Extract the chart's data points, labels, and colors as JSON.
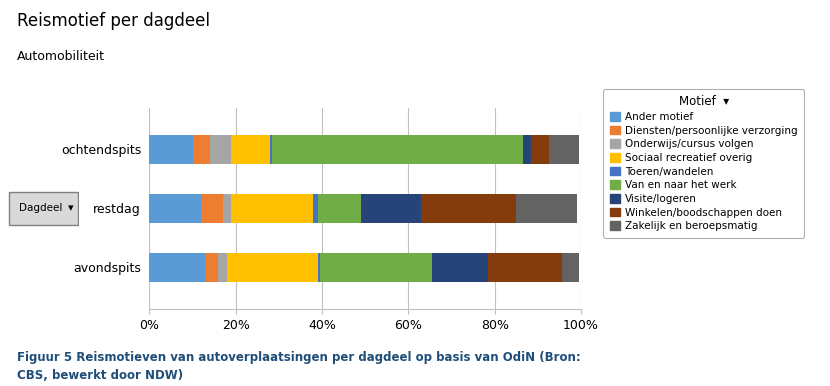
{
  "title": "Reismotief per dagdeel",
  "subtitle": "Automobiliteit",
  "caption": "Figuur 5 Reismotieven van autoverplaatsingen per dagdeel op basis van OdiN (Bron:\nCBS, bewerkt door NDW)",
  "categories": [
    "ochtendspits",
    "restdag",
    "avondspits"
  ],
  "legend_title": "Motief",
  "motives": [
    "Ander motief",
    "Diensten/persoonlijke verzorging",
    "Onderwijs/cursus volgen",
    "Sociaal recreatief overig",
    "Toeren/wandelen",
    "Van en naar het werk",
    "Visite/logeren",
    "Winkelen/boodschappen doen",
    "Zakelijk en beroepsmatig"
  ],
  "colors": [
    "#5B9BD5",
    "#ED7D31",
    "#A5A5A5",
    "#FFC000",
    "#4472C4",
    "#70AD47",
    "#264478",
    "#843C0C",
    "#636363"
  ],
  "data": {
    "ochtendspits": [
      10,
      4,
      5,
      9,
      0.5,
      58,
      2,
      4,
      7
    ],
    "restdag": [
      12,
      5,
      2,
      19,
      1,
      10,
      14,
      22,
      14
    ],
    "avondspits": [
      13,
      3,
      2,
      21,
      0.5,
      26,
      13,
      17,
      4
    ]
  },
  "dagdeel_label": "Dagdeel",
  "xlim": [
    0,
    100
  ],
  "xtick_labels": [
    "0%",
    "20%",
    "40%",
    "60%",
    "80%",
    "100%"
  ],
  "xtick_values": [
    0,
    20,
    40,
    60,
    80,
    100
  ],
  "bar_height": 0.5,
  "figsize": [
    8.3,
    3.86
  ],
  "dpi": 100
}
